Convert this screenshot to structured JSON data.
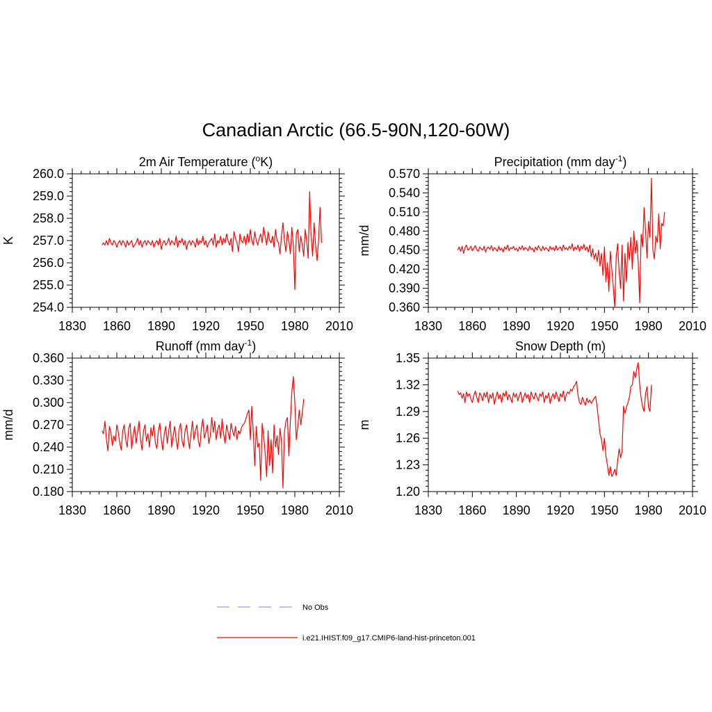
{
  "title": "Canadian Arctic (66.5-90N,120-60W)",
  "legend": {
    "placement": "bottom-center",
    "entries": [
      {
        "label": "No Obs",
        "color": "#9999ee",
        "style": "dashed"
      },
      {
        "label": "i.e21.IHIST.f09_g17.CMIP6-land-hist-princeton.001",
        "color": "#ff0000",
        "style": "solid"
      }
    ]
  },
  "chart_data": [
    {
      "type": "line",
      "title": "2m Air Temperature (°K)",
      "title_parts": {
        "before": "2m Air Temperature (",
        "sup": "o",
        "after": "K)"
      },
      "xlabel": "",
      "ylabel": "K",
      "xlim": [
        1830,
        2010
      ],
      "ylim": [
        254.0,
        260.0
      ],
      "x_ticks": [
        "1830",
        "1860",
        "1890",
        "1920",
        "1950",
        "1980",
        "2010"
      ],
      "y_ticks": [
        "254.0",
        "255.0",
        "256.0",
        "257.0",
        "258.0",
        "259.0",
        "260.0"
      ],
      "x_start": 1850,
      "series": [
        {
          "color": "#ff0000",
          "values": [
            256.8,
            256.9,
            256.8,
            257.0,
            256.8,
            257.1,
            256.9,
            256.8,
            257.0,
            256.9,
            256.7,
            256.9,
            257.0,
            256.8,
            257.0,
            256.9,
            256.7,
            257.0,
            256.8,
            256.9,
            257.0,
            256.7,
            256.8,
            256.9,
            257.1,
            256.8,
            257.0,
            256.7,
            256.9,
            257.0,
            256.8,
            257.0,
            256.9,
            256.8,
            257.0,
            256.7,
            256.9,
            257.0,
            256.8,
            257.1,
            256.6,
            256.9,
            257.0,
            256.8,
            256.9,
            257.1,
            256.8,
            257.0,
            256.9,
            256.8,
            257.2,
            256.7,
            257.0,
            256.9,
            257.1,
            256.8,
            257.0,
            256.6,
            256.9,
            257.0,
            256.8,
            257.0,
            256.9,
            256.7,
            257.1,
            256.8,
            257.0,
            256.9,
            257.2,
            256.8,
            257.0,
            256.7,
            256.9,
            257.0,
            257.1,
            256.8,
            257.3,
            256.7,
            257.0,
            256.9,
            257.2,
            256.8,
            257.1,
            256.9,
            257.3,
            257.0,
            256.8,
            257.1,
            256.5,
            257.4,
            257.1,
            256.9,
            256.5,
            257.3,
            257.0,
            256.9,
            257.2,
            256.8,
            257.3,
            256.9,
            257.5,
            257.0,
            256.8,
            257.4,
            257.0,
            256.8,
            257.1,
            257.3,
            256.9,
            257.6,
            257.2,
            256.8,
            257.4,
            257.0,
            256.9,
            257.2,
            256.7,
            257.5,
            257.0,
            256.9,
            256.4,
            257.2,
            257.8,
            257.0,
            256.5,
            257.4,
            257.0,
            256.4,
            257.6,
            256.8,
            254.8,
            257.3,
            257.5,
            256.5,
            257.2,
            256.8,
            256.3,
            257.5,
            257.0,
            256.2,
            259.2,
            257.2,
            256.3,
            257.8,
            256.8,
            256.1,
            257.0,
            258.5,
            256.9
          ]
        }
      ]
    },
    {
      "type": "line",
      "title": "Precipitation (mm day-1)",
      "title_parts": {
        "before": "Precipitation (mm day",
        "sup": "-1",
        "after": ")"
      },
      "xlabel": "",
      "ylabel": "mm/d",
      "xlim": [
        1830,
        2010
      ],
      "ylim": [
        0.36,
        0.57
      ],
      "x_ticks": [
        "1830",
        "1860",
        "1890",
        "1920",
        "1950",
        "1980",
        "2010"
      ],
      "y_ticks": [
        "0.360",
        "0.390",
        "0.420",
        "0.450",
        "0.480",
        "0.510",
        "0.540",
        "0.570"
      ],
      "x_start": 1850,
      "series": [
        {
          "color": "#ff0000",
          "values": [
            0.45,
            0.455,
            0.448,
            0.456,
            0.445,
            0.454,
            0.458,
            0.45,
            0.452,
            0.456,
            0.449,
            0.453,
            0.457,
            0.451,
            0.448,
            0.455,
            0.452,
            0.45,
            0.456,
            0.447,
            0.453,
            0.455,
            0.451,
            0.457,
            0.449,
            0.454,
            0.452,
            0.448,
            0.456,
            0.45,
            0.453,
            0.447,
            0.455,
            0.451,
            0.458,
            0.449,
            0.454,
            0.452,
            0.456,
            0.45,
            0.453,
            0.448,
            0.455,
            0.451,
            0.457,
            0.45,
            0.454,
            0.452,
            0.449,
            0.456,
            0.451,
            0.453,
            0.447,
            0.455,
            0.45,
            0.457,
            0.452,
            0.449,
            0.456,
            0.45,
            0.454,
            0.452,
            0.448,
            0.456,
            0.451,
            0.454,
            0.449,
            0.457,
            0.45,
            0.453,
            0.455,
            0.449,
            0.458,
            0.451,
            0.454,
            0.45,
            0.456,
            0.452,
            0.46,
            0.449,
            0.455,
            0.451,
            0.458,
            0.448,
            0.456,
            0.452,
            0.459,
            0.45,
            0.455,
            0.447,
            0.458,
            0.44,
            0.452,
            0.436,
            0.445,
            0.432,
            0.45,
            0.425,
            0.445,
            0.41,
            0.455,
            0.4,
            0.43,
            0.385,
            0.448,
            0.42,
            0.392,
            0.36,
            0.44,
            0.46,
            0.415,
            0.39,
            0.458,
            0.37,
            0.445,
            0.4,
            0.462,
            0.435,
            0.47,
            0.42,
            0.48,
            0.445,
            0.465,
            0.43,
            0.367,
            0.475,
            0.455,
            0.517,
            0.48,
            0.438,
            0.495,
            0.47,
            0.563,
            0.45,
            0.436,
            0.472,
            0.462,
            0.507,
            0.452,
            0.492,
            0.488,
            0.51
          ]
        }
      ]
    },
    {
      "type": "line",
      "title": "Runoff (mm day-1)",
      "title_parts": {
        "before": "Runoff (mm day",
        "sup": "-1",
        "after": ")"
      },
      "xlabel": "",
      "ylabel": "mm/d",
      "xlim": [
        1830,
        2010
      ],
      "ylim": [
        0.18,
        0.36
      ],
      "x_ticks": [
        "1830",
        "1860",
        "1890",
        "1920",
        "1950",
        "1980",
        "2010"
      ],
      "y_ticks": [
        "0.180",
        "0.210",
        "0.240",
        "0.270",
        "0.300",
        "0.330",
        "0.360"
      ],
      "x_start": 1850,
      "series": [
        {
          "color": "#ff0000",
          "values": [
            0.262,
            0.258,
            0.275,
            0.25,
            0.235,
            0.268,
            0.26,
            0.242,
            0.255,
            0.248,
            0.27,
            0.26,
            0.245,
            0.236,
            0.262,
            0.27,
            0.25,
            0.24,
            0.265,
            0.272,
            0.238,
            0.255,
            0.268,
            0.245,
            0.26,
            0.275,
            0.25,
            0.236,
            0.262,
            0.27,
            0.248,
            0.258,
            0.24,
            0.266,
            0.255,
            0.27,
            0.245,
            0.238,
            0.262,
            0.272,
            0.25,
            0.236,
            0.258,
            0.268,
            0.245,
            0.262,
            0.275,
            0.24,
            0.255,
            0.268,
            0.25,
            0.237,
            0.264,
            0.272,
            0.248,
            0.24,
            0.262,
            0.27,
            0.252,
            0.238,
            0.258,
            0.275,
            0.25,
            0.262,
            0.27,
            0.248,
            0.24,
            0.266,
            0.278,
            0.252,
            0.26,
            0.27,
            0.245,
            0.255,
            0.28,
            0.26,
            0.275,
            0.25,
            0.264,
            0.27,
            0.252,
            0.278,
            0.258,
            0.245,
            0.27,
            0.26,
            0.25,
            0.272,
            0.262,
            0.255,
            0.268,
            0.25,
            0.262,
            0.258,
            0.266,
            0.27,
            0.272,
            0.278,
            0.285,
            0.29,
            0.25,
            0.295,
            0.26,
            0.215,
            0.268,
            0.24,
            0.245,
            0.195,
            0.272,
            0.255,
            0.232,
            0.2,
            0.262,
            0.215,
            0.25,
            0.205,
            0.27,
            0.24,
            0.255,
            0.23,
            0.265,
            0.248,
            0.185,
            0.26,
            0.275,
            0.28,
            0.228,
            0.275,
            0.315,
            0.335,
            0.3,
            0.25,
            0.268,
            0.29,
            0.27,
            0.285,
            0.305
          ]
        }
      ]
    },
    {
      "type": "line",
      "title": "Snow Depth (m)",
      "xlabel": "",
      "ylabel": "m",
      "xlim": [
        1830,
        2010
      ],
      "ylim": [
        1.2,
        1.35
      ],
      "x_ticks": [
        "1830",
        "1860",
        "1890",
        "1920",
        "1950",
        "1980",
        "2010"
      ],
      "y_ticks": [
        "1.20",
        "1.23",
        "1.26",
        "1.29",
        "1.32",
        "1.35"
      ],
      "x_start": 1850,
      "series": [
        {
          "color": "#ff0000",
          "values": [
            1.313,
            1.309,
            1.311,
            1.305,
            1.31,
            1.3,
            1.312,
            1.307,
            1.31,
            1.304,
            1.3,
            1.308,
            1.313,
            1.306,
            1.3,
            1.311,
            1.308,
            1.302,
            1.311,
            1.306,
            1.312,
            1.3,
            1.309,
            1.305,
            1.311,
            1.298,
            1.306,
            1.312,
            1.304,
            1.309,
            1.3,
            1.311,
            1.307,
            1.313,
            1.303,
            1.309,
            1.305,
            1.3,
            1.311,
            1.306,
            1.31,
            1.302,
            1.308,
            1.312,
            1.3,
            1.306,
            1.311,
            1.305,
            1.309,
            1.3,
            1.312,
            1.307,
            1.304,
            1.311,
            1.306,
            1.302,
            1.31,
            1.307,
            1.312,
            1.3,
            1.308,
            1.305,
            1.311,
            1.299,
            1.306,
            1.31,
            1.304,
            1.312,
            1.307,
            1.301,
            1.31,
            1.306,
            1.313,
            1.302,
            1.309,
            1.312,
            1.31,
            1.315,
            1.313,
            1.318,
            1.32,
            1.324,
            1.308,
            1.3,
            1.298,
            1.306,
            1.301,
            1.297,
            1.305,
            1.3,
            1.303,
            1.299,
            1.302,
            1.305,
            1.307,
            1.295,
            1.28,
            1.265,
            1.258,
            1.246,
            1.26,
            1.24,
            1.23,
            1.218,
            1.228,
            1.217,
            1.22,
            1.225,
            1.218,
            1.235,
            1.248,
            1.238,
            1.245,
            1.296,
            1.288,
            1.295,
            1.3,
            1.306,
            1.318,
            1.32,
            1.335,
            1.328,
            1.338,
            1.345,
            1.32,
            1.305,
            1.295,
            1.29,
            1.31,
            1.318,
            1.295,
            1.29,
            1.32
          ]
        }
      ]
    }
  ]
}
